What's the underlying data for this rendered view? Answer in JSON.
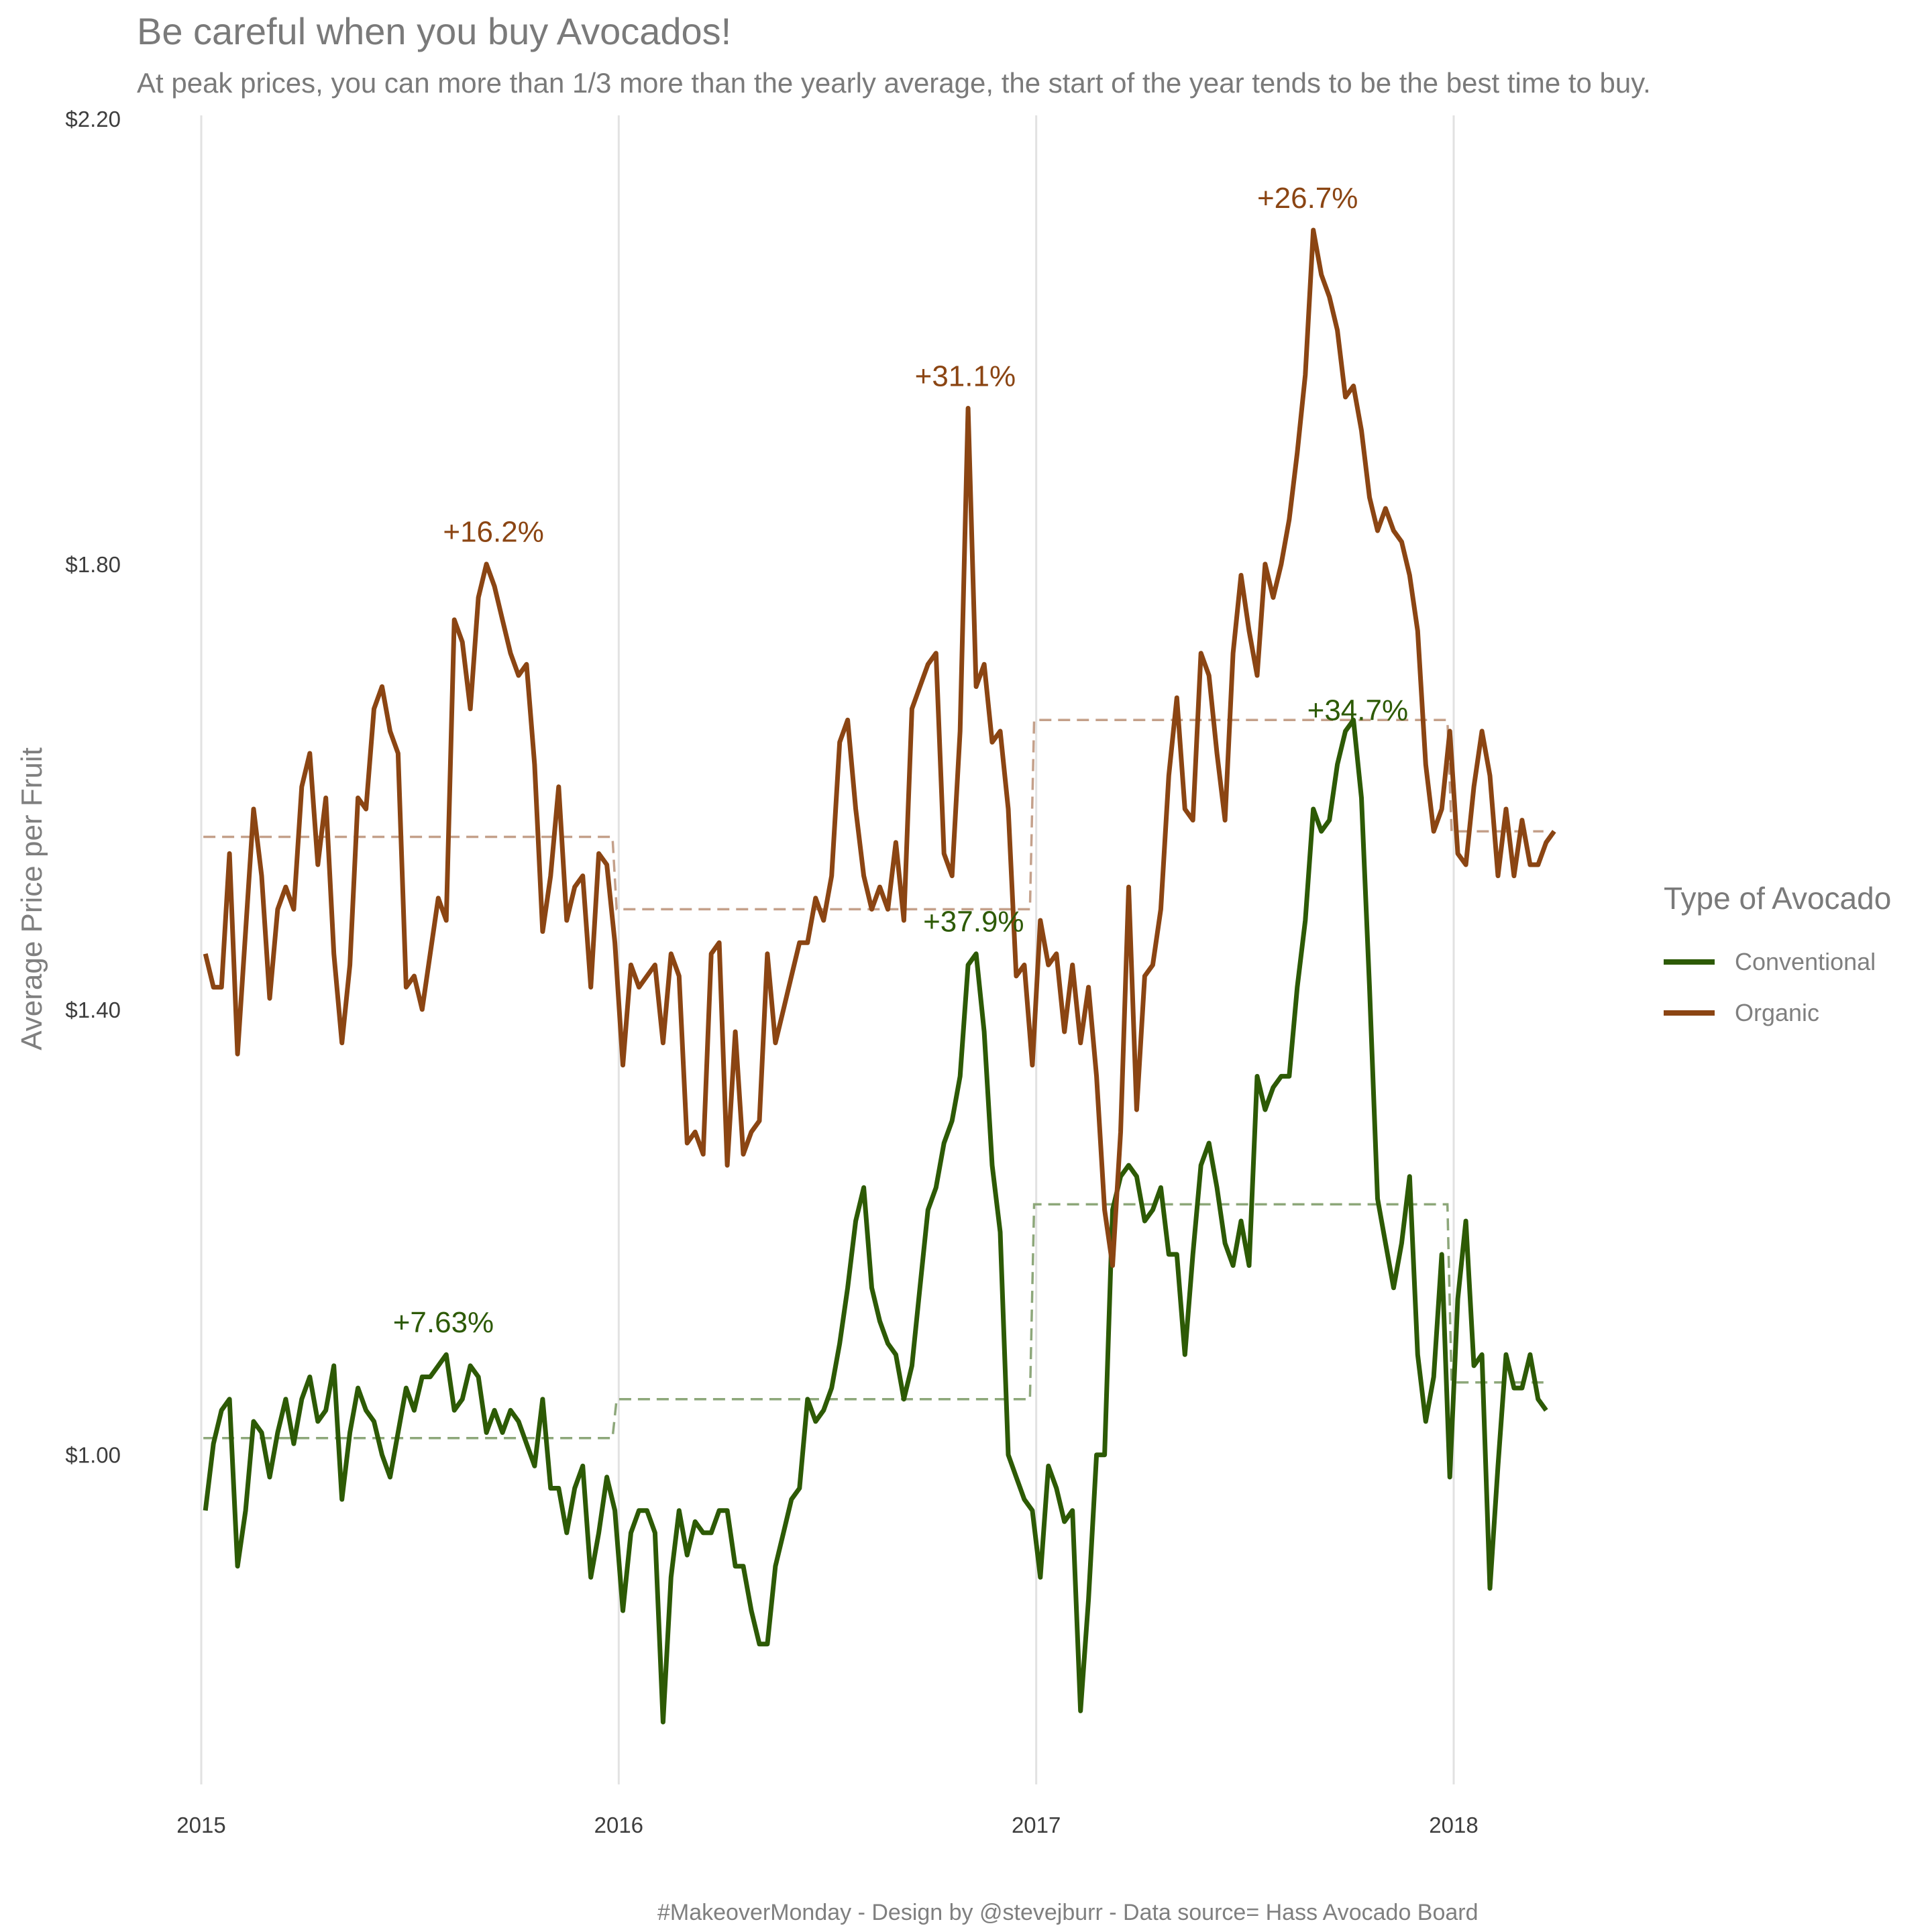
{
  "title": "Be careful when you buy Avocados!",
  "subtitle": "At peak prices, you can more than 1/3 more than the yearly average, the start of the year tends to be the best time to buy.",
  "caption": "#MakeoverMonday - Design by @stevejburr - Data source= Hass Avocado Board",
  "chart_data": {
    "type": "line",
    "title": "Be careful when you buy Avocados!",
    "subtitle": "At peak prices, you can more than 1/3 more than the yearly average, the start of the year tends to be the best time to buy.",
    "ylabel": "Average Price per Fruit",
    "xlabel": "",
    "ylim": [
      0.71,
      2.2
    ],
    "xlim": [
      2015.0,
      2018.23
    ],
    "x_ticks": [
      2015,
      2016,
      2017,
      2018
    ],
    "x_tick_labels": [
      "2015",
      "2016",
      "2017",
      "2018"
    ],
    "y_ticks": [
      1.0,
      1.4,
      1.8,
      2.2
    ],
    "y_tick_labels": [
      "$1.00",
      "$1.40",
      "$1.80",
      "$2.20"
    ],
    "grid": "vertical major only",
    "legend": {
      "title": "Type of Avocado",
      "position": "right"
    },
    "series": [
      {
        "name": "Conventional",
        "color": "#2d5a05",
        "x_start": 2015.01,
        "x_step": 0.01923,
        "values": [
          0.95,
          1.01,
          1.04,
          1.05,
          0.9,
          0.95,
          1.03,
          1.02,
          0.98,
          1.02,
          1.05,
          1.01,
          1.05,
          1.07,
          1.03,
          1.04,
          1.08,
          0.96,
          1.02,
          1.06,
          1.04,
          1.03,
          1.0,
          0.98,
          1.02,
          1.06,
          1.04,
          1.07,
          1.07,
          1.08,
          1.09,
          1.04,
          1.05,
          1.08,
          1.07,
          1.02,
          1.04,
          1.02,
          1.04,
          1.03,
          1.01,
          0.99,
          1.05,
          0.97,
          0.97,
          0.93,
          0.97,
          0.99,
          0.89,
          0.93,
          0.98,
          0.95,
          0.86,
          0.93,
          0.95,
          0.95,
          0.93,
          0.76,
          0.89,
          0.95,
          0.91,
          0.94,
          0.93,
          0.93,
          0.95,
          0.95,
          0.9,
          0.9,
          0.86,
          0.83,
          0.83,
          0.9,
          0.93,
          0.96,
          0.97,
          1.05,
          1.03,
          1.04,
          1.06,
          1.1,
          1.15,
          1.21,
          1.24,
          1.15,
          1.12,
          1.1,
          1.09,
          1.05,
          1.08,
          1.15,
          1.22,
          1.24,
          1.28,
          1.3,
          1.34,
          1.44,
          1.45,
          1.38,
          1.26,
          1.2,
          1.0,
          0.98,
          0.96,
          0.95,
          0.89,
          0.99,
          0.97,
          0.94,
          0.95,
          0.77,
          0.87,
          1.0,
          1.0,
          1.22,
          1.25,
          1.26,
          1.25,
          1.21,
          1.22,
          1.24,
          1.18,
          1.18,
          1.09,
          1.18,
          1.26,
          1.28,
          1.24,
          1.19,
          1.17,
          1.21,
          1.17,
          1.34,
          1.31,
          1.33,
          1.34,
          1.34,
          1.42,
          1.48,
          1.58,
          1.56,
          1.57,
          1.62,
          1.65,
          1.66,
          1.59,
          1.42,
          1.23,
          1.19,
          1.15,
          1.19,
          1.25,
          1.09,
          1.03,
          1.07,
          1.18,
          0.98,
          1.14,
          1.21,
          1.08,
          1.09,
          0.88,
          0.99,
          1.09,
          1.06,
          1.06,
          1.09,
          1.05,
          1.04
        ]
      },
      {
        "name": "Organic",
        "color": "#8b4513",
        "x_start": 2015.01,
        "x_step": 0.01923,
        "values": [
          1.45,
          1.42,
          1.42,
          1.54,
          1.36,
          1.47,
          1.58,
          1.52,
          1.41,
          1.49,
          1.51,
          1.49,
          1.6,
          1.63,
          1.53,
          1.59,
          1.45,
          1.37,
          1.44,
          1.59,
          1.58,
          1.67,
          1.69,
          1.65,
          1.63,
          1.42,
          1.43,
          1.4,
          1.45,
          1.5,
          1.48,
          1.75,
          1.73,
          1.67,
          1.77,
          1.8,
          1.78,
          1.75,
          1.72,
          1.7,
          1.71,
          1.62,
          1.47,
          1.52,
          1.6,
          1.48,
          1.51,
          1.52,
          1.42,
          1.54,
          1.53,
          1.46,
          1.35,
          1.44,
          1.42,
          1.43,
          1.44,
          1.37,
          1.45,
          1.43,
          1.28,
          1.29,
          1.27,
          1.45,
          1.46,
          1.26,
          1.38,
          1.27,
          1.29,
          1.3,
          1.45,
          1.37,
          1.4,
          1.43,
          1.46,
          1.46,
          1.5,
          1.48,
          1.52,
          1.64,
          1.66,
          1.58,
          1.52,
          1.49,
          1.51,
          1.49,
          1.55,
          1.48,
          1.67,
          1.69,
          1.71,
          1.72,
          1.54,
          1.52,
          1.65,
          1.94,
          1.69,
          1.71,
          1.64,
          1.65,
          1.58,
          1.43,
          1.44,
          1.35,
          1.48,
          1.44,
          1.45,
          1.38,
          1.44,
          1.37,
          1.42,
          1.34,
          1.22,
          1.17,
          1.29,
          1.51,
          1.31,
          1.43,
          1.44,
          1.49,
          1.61,
          1.68,
          1.58,
          1.57,
          1.72,
          1.7,
          1.63,
          1.57,
          1.72,
          1.79,
          1.74,
          1.7,
          1.8,
          1.77,
          1.8,
          1.84,
          1.9,
          1.97,
          2.1,
          2.06,
          2.04,
          2.01,
          1.95,
          1.96,
          1.92,
          1.86,
          1.83,
          1.85,
          1.83,
          1.82,
          1.79,
          1.74,
          1.62,
          1.56,
          1.58,
          1.65,
          1.54,
          1.53,
          1.6,
          1.65,
          1.61,
          1.52,
          1.58,
          1.52,
          1.57,
          1.53,
          1.53,
          1.55,
          1.56
        ]
      }
    ],
    "yearly_averages": [
      {
        "series": "Conventional",
        "year": 2015,
        "value": 1.015
      },
      {
        "series": "Conventional",
        "year": 2016,
        "value": 1.05
      },
      {
        "series": "Conventional",
        "year": 2017,
        "value": 1.225
      },
      {
        "series": "Conventional",
        "year": 2018,
        "value": 1.065
      },
      {
        "series": "Organic",
        "year": 2015,
        "value": 1.555
      },
      {
        "series": "Organic",
        "year": 2016,
        "value": 1.49
      },
      {
        "series": "Organic",
        "year": 2017,
        "value": 1.66
      },
      {
        "series": "Organic",
        "year": 2018,
        "value": 1.56
      }
    ],
    "annotations": [
      {
        "series": "Organic",
        "text": "+16.2%",
        "x": 2015.7,
        "y": 1.82
      },
      {
        "series": "Organic",
        "text": "+31.1%",
        "x": 2016.83,
        "y": 1.96
      },
      {
        "series": "Organic",
        "text": "+26.7%",
        "x": 2017.65,
        "y": 2.12
      },
      {
        "series": "Conventional",
        "text": "+7.63%",
        "x": 2015.58,
        "y": 1.11
      },
      {
        "series": "Conventional",
        "text": "+37.9%",
        "x": 2016.85,
        "y": 1.47
      },
      {
        "series": "Conventional",
        "text": "+34.7%",
        "x": 2017.77,
        "y": 1.66
      }
    ]
  }
}
